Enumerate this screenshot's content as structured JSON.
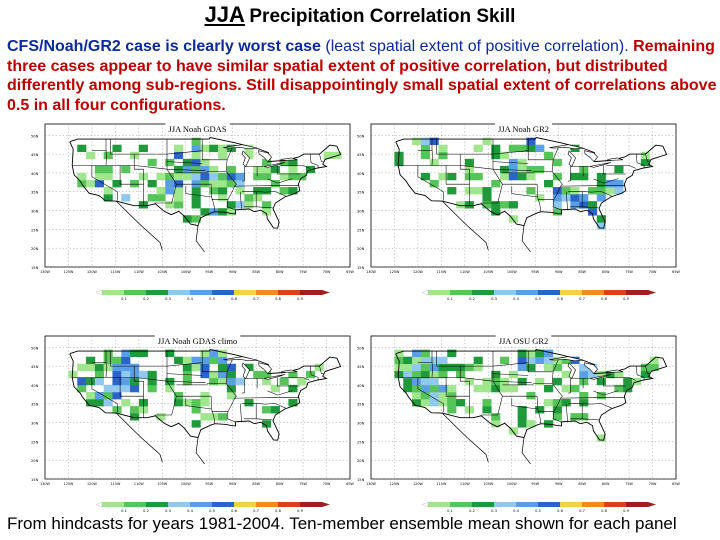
{
  "title": {
    "big": "JJA",
    "rest": "Precipitation Correlation Skill"
  },
  "description": {
    "part1": "CFS/Noah/GR2 case is clearly worst case",
    "part2": "(least spatial extent of positive correlation).",
    "part3": "Remaining three cases appear to have similar spatial extent of positive correlation, but distributed differently among sub-regions. Still disappointingly small spatial extent of correlations above 0.5 in all four configurations."
  },
  "footer": "From hindcasts for years 1981-2004. Ten-member ensemble mean shown for each panel",
  "colors": {
    "title": "#000000",
    "highlight_red": "#c00000",
    "text_blue": "#0b2a9e"
  },
  "legend_colors": [
    "#a0e68c",
    "#57c45a",
    "#1e9a3a",
    "#90c8f0",
    "#5a9fe6",
    "#2a64c8",
    "#f5d041",
    "#f08c1e",
    "#e03c1e",
    "#a01e1e"
  ],
  "legend_labels": [
    "0.1",
    "0.2",
    "0.3",
    "0.4",
    "0.5",
    "0.6",
    "0.7",
    "0.8",
    "0.9"
  ],
  "lat_labels": [
    "50N",
    "45N",
    "40N",
    "35N",
    "30N",
    "25N",
    "20N",
    "15N"
  ],
  "lon_labels": [
    "130W",
    "125W",
    "120W",
    "115W",
    "110W",
    "105W",
    "100W",
    "95W",
    "90W",
    "85W",
    "80W",
    "75W",
    "70W",
    "65W"
  ],
  "panels": [
    {
      "title": "JJA Noah GDAS",
      "seed": 11,
      "density": 0.26,
      "blue": 0.28
    },
    {
      "title": "JJA Noah GR2",
      "seed": 23,
      "density": 0.2,
      "blue": 0.24
    },
    {
      "title": "JJA Noah GDAS climo",
      "seed": 37,
      "density": 0.27,
      "blue": 0.3
    },
    {
      "title": "JJA OSU GR2",
      "seed": 53,
      "density": 0.3,
      "blue": 0.26
    }
  ]
}
